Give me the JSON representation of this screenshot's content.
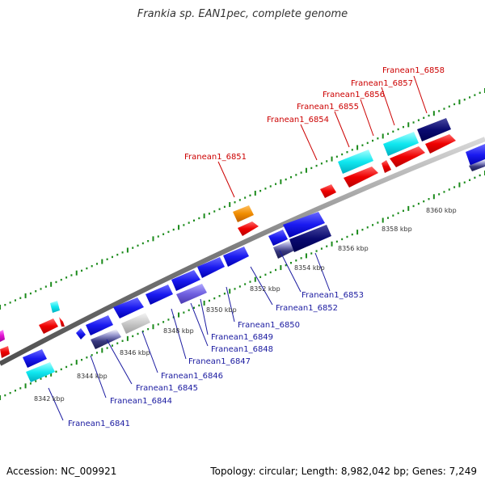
{
  "title": "Frankia sp. EAN1pec, complete genome",
  "footer": {
    "accession": "Accession: NC_009921",
    "summary": "Topology: circular; Length: 8,982,042 bp; Genes: 7,249"
  },
  "colors": {
    "backbone": "#8c8c8c",
    "tick_outer": "#1a8a1a",
    "label_top": "#cc0000",
    "label_bottom": "#1a1aa0",
    "kbp_text": "#333333"
  },
  "scale_labels": [
    "8342 kbp",
    "8344 kbp",
    "8346 kbp",
    "8348 kbp",
    "8350 kbp",
    "8352 kbp",
    "8354 kbp",
    "8356 kbp",
    "8358 kbp",
    "8360 kbp"
  ],
  "gene_labels_top": [
    "Franean1_6851",
    "Franean1_6854",
    "Franean1_6855",
    "Franean1_6856",
    "Franean1_6857",
    "Franean1_6858"
  ],
  "gene_labels_bottom": [
    "Franean1_6841",
    "Franean1_6844",
    "Franean1_6845",
    "Franean1_6846",
    "Franean1_6847",
    "Franean1_6848",
    "Franean1_6849",
    "Franean1_6850",
    "Franean1_6852",
    "Franean1_6853"
  ]
}
